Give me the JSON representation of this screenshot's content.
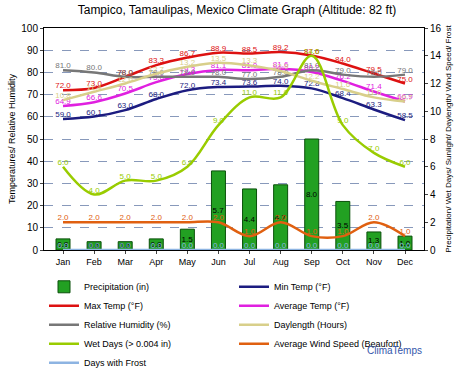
{
  "chart_data": {
    "type": "line",
    "title": "Tampico, Tamaulipas, Mexico Climate Graph (Altitude: 82 ft)",
    "annotations": [
      "ClimaTemps"
    ],
    "ylabel": "Temperatures/ Relative Humidity",
    "y2label": "Precipitation/ Wet Days/ Sunlight/ Daylength/ Wind Speed/ Frost",
    "categories": [
      "Jan",
      "Feb",
      "Mar",
      "Apr",
      "May",
      "Jun",
      "Jul",
      "Aug",
      "Sep",
      "Oct",
      "Nov",
      "Dec"
    ],
    "ylim": [
      0,
      100
    ],
    "yticks": [
      0,
      10,
      20,
      30,
      40,
      50,
      60,
      70,
      80,
      90,
      100
    ],
    "y2lim": [
      0,
      16
    ],
    "y2ticks": [
      0,
      2,
      4,
      6,
      8,
      10,
      12,
      14,
      16
    ],
    "grid": true,
    "legend": "bottom",
    "data_labels": true,
    "series": [
      {
        "name": "Precipitation (in)",
        "type": "bar",
        "axis": "y2",
        "color": "#22a022",
        "values": [
          0.8,
          0.6,
          0.6,
          0.8,
          1.5,
          5.7,
          4.4,
          4.7,
          8.0,
          3.5,
          1.3,
          1.0
        ],
        "value_labels": [
          "0.8",
          "0.6",
          "0.6",
          "0.8",
          "1.5",
          "5.7",
          "4.4",
          "4.7",
          "8.0",
          "3.5",
          "1.3",
          "1.0"
        ]
      },
      {
        "name": "Min Temp (°F)",
        "type": "line",
        "line_style": "smooth",
        "color": "#1c1c80",
        "values": [
          59.0,
          60.1,
          63.0,
          68.0,
          72.0,
          73.4,
          73.6,
          74.0,
          72.8,
          68.4,
          63.3,
          58.5
        ],
        "value_labels": [
          "59.0",
          "60.1",
          "63.0",
          "68.0",
          "72.0",
          "73.4",
          "73.6",
          "74.0",
          "72.8",
          "68.4",
          "63.3",
          "58.5"
        ]
      },
      {
        "name": "Max Temp (°F)",
        "type": "line",
        "line_style": "smooth",
        "color": "#dd1111",
        "values": [
          72.0,
          73.0,
          78.0,
          83.3,
          86.7,
          88.9,
          88.5,
          89.2,
          87.6,
          84.0,
          79.5,
          75.0
        ],
        "value_labels": [
          "72.0",
          "73.0",
          "78.0",
          "83.3",
          "86.7",
          "88.9",
          "88.5",
          "89.2",
          "87.6",
          "84.0",
          "79.5",
          "75.0"
        ]
      },
      {
        "name": "Average Temp (°F)",
        "type": "line",
        "line_style": "smooth",
        "color": "#e020e0",
        "values": [
          64.9,
          66.6,
          70.5,
          75.6,
          79.3,
          81.1,
          81.0,
          81.6,
          80.2,
          76.2,
          71.4,
          66.9
        ],
        "value_labels": [
          "64.9",
          "66.6",
          "70.5",
          "75.6",
          "79.3",
          "81.1",
          "81.0",
          "81.6",
          "80.2",
          "76.2",
          "71.4",
          "66.9"
        ]
      },
      {
        "name": "Relative Humidity (%)",
        "type": "line",
        "line_style": "smooth",
        "color": "#777777",
        "values": [
          81.0,
          80.0,
          78.0,
          78.0,
          78.0,
          78.0,
          77.0,
          78.0,
          81.0,
          79.0,
          78.0,
          79.0
        ],
        "value_labels": [
          "81.0",
          "80.0",
          "78.0",
          "78.0",
          "78.0",
          "78.0",
          "77.0",
          "78.0",
          "81.0",
          "79.0",
          "78.0",
          "79.0"
        ]
      },
      {
        "name": "Daylength (Hours)",
        "type": "line",
        "line_style": "smooth",
        "axis": "y2",
        "color": "#d8cf8a",
        "values": [
          10.8,
          11.4,
          12.0,
          12.7,
          13.2,
          13.5,
          13.3,
          12.9,
          12.2,
          11.6,
          11.0,
          10.7
        ],
        "value_labels": [
          "10.8",
          "11.4",
          "12.0",
          "12.7",
          "13.2",
          "13.5",
          "13.3",
          "12.9",
          "12.2",
          "11.6",
          "11.0",
          "10.7"
        ]
      },
      {
        "name": "Wet Days (> 0.004 in)",
        "type": "line",
        "line_style": "smooth",
        "axis": "y2",
        "color": "#99cc00",
        "values": [
          6.0,
          4.0,
          5.0,
          5.0,
          6.0,
          9.0,
          11.0,
          11.0,
          14.0,
          9.0,
          7.0,
          6.0
        ],
        "value_labels": [
          "6.0",
          "4.0",
          "5.0",
          "5.0",
          "6.0",
          "9.0",
          "11.0",
          "11.0",
          "14.0",
          "9.0",
          "7.0",
          "6.0"
        ]
      },
      {
        "name": "Average Wind Speed (Beaufort)",
        "type": "line",
        "line_style": "smooth",
        "axis": "y2",
        "color": "#e06010",
        "values": [
          2.0,
          2.0,
          2.0,
          2.0,
          2.0,
          2.0,
          1.0,
          2.0,
          1.0,
          1.0,
          2.0,
          1.0
        ],
        "value_labels": [
          "2.0",
          "2.0",
          "2.0",
          "2.0",
          "2.0",
          "2.0",
          "1.0",
          "2.0",
          "1.0",
          "1.0",
          "2.0",
          "1.0"
        ]
      },
      {
        "name": "Days with Frost",
        "type": "line",
        "line_style": "smooth",
        "axis": "y2",
        "color": "#8db4e2",
        "values": [
          0.0,
          0.0,
          0.0,
          0.0,
          0.0,
          0.0,
          0.0,
          0.0,
          0.0,
          0.0,
          0.0,
          0.0
        ],
        "value_labels": [
          "0.0",
          "0.0",
          "0.0",
          "0.0",
          "0.0",
          "0.0",
          "0.0",
          "0.0",
          "0.0",
          "0.0",
          "0.0",
          "0.0"
        ]
      }
    ]
  }
}
